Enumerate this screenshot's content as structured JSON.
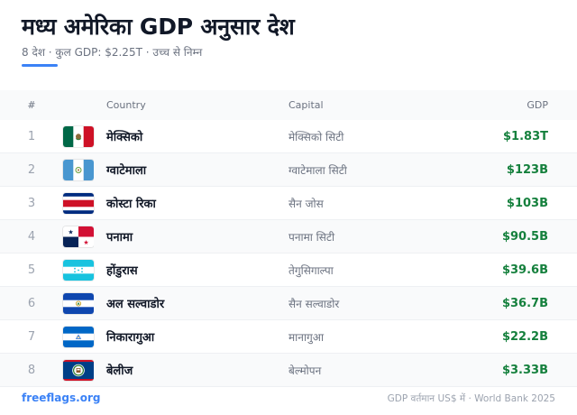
{
  "header": {
    "title": "मध्य अमेरिका GDP अनुसार देश",
    "subtitle": "8 देश · कुल GDP: $2.25T · उच्च से निम्न",
    "accent_color": "#3b82f6"
  },
  "table": {
    "columns": {
      "rank": "#",
      "country": "Country",
      "capital": "Capital",
      "gdp": "GDP"
    },
    "rows": [
      {
        "rank": "1",
        "flag_icon": "mexico-flag-icon",
        "country": "मेक्सिको",
        "capital": "मेक्सिको सिटी",
        "gdp": "$1.83T"
      },
      {
        "rank": "2",
        "flag_icon": "guatemala-flag-icon",
        "country": "ग्वाटेमाला",
        "capital": "ग्वाटेमाला सिटी",
        "gdp": "$123B"
      },
      {
        "rank": "3",
        "flag_icon": "costa-rica-flag-icon",
        "country": "कोस्टा रिका",
        "capital": "सैन जोस",
        "gdp": "$103B"
      },
      {
        "rank": "4",
        "flag_icon": "panama-flag-icon",
        "country": "पनामा",
        "capital": "पनामा सिटी",
        "gdp": "$90.5B"
      },
      {
        "rank": "5",
        "flag_icon": "honduras-flag-icon",
        "country": "होंडुरास",
        "capital": "तेगुसिगाल्पा",
        "gdp": "$39.6B"
      },
      {
        "rank": "6",
        "flag_icon": "el-salvador-flag-icon",
        "country": "अल सल्वाडोर",
        "capital": "सैन सल्वाडोर",
        "gdp": "$36.7B"
      },
      {
        "rank": "7",
        "flag_icon": "nicaragua-flag-icon",
        "country": "निकारागुआ",
        "capital": "मानागुआ",
        "gdp": "$22.2B"
      },
      {
        "rank": "8",
        "flag_icon": "belize-flag-icon",
        "country": "बेलीज",
        "capital": "बेल्मोपन",
        "gdp": "$3.33B"
      }
    ],
    "gdp_color": "#15803d"
  },
  "footer": {
    "brand": "freeflags.org",
    "note": "GDP वर्तमान US$ में · World Bank 2025"
  }
}
